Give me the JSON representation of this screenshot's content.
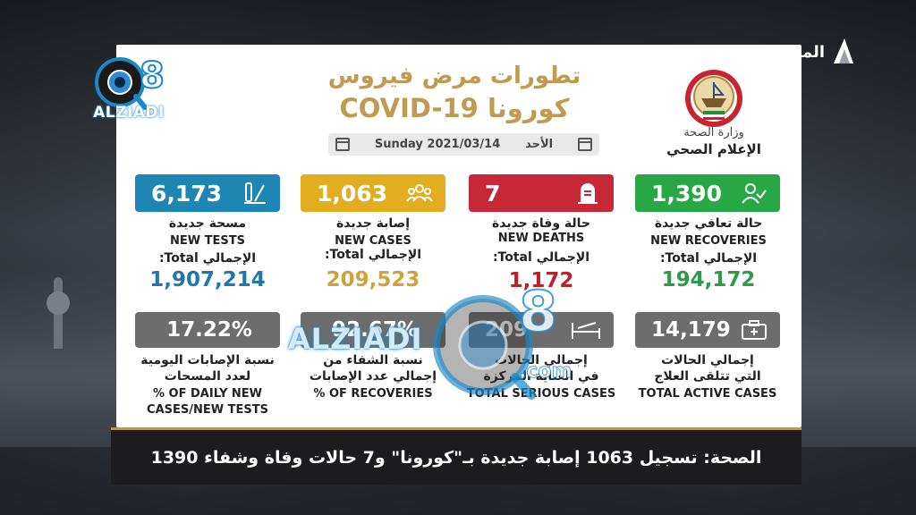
{
  "channel": {
    "logo_text": "المجلس"
  },
  "watermark": {
    "brand": "ALZIADI",
    "numeral": "8",
    "domain": ".com"
  },
  "header": {
    "title_ar": "تطورات مرض فيروس",
    "title_en": "كورونا COVID-19",
    "date": "Sunday 2021/03/14",
    "day_ar": "الأحد"
  },
  "ministry": {
    "line1": "وزارة الصحة",
    "line2": "الإعلام الصحي"
  },
  "cards": {
    "recoveries": {
      "value": "1,390",
      "label_ar": "حالة تعافي جديدة",
      "label_en": "NEW RECOVERIES",
      "total_label": "الإجمالي Total:",
      "total": "194,172",
      "color": "#27a844",
      "total_color": "#2a9d46"
    },
    "deaths": {
      "value": "7",
      "label_ar": "حالة وفاة جديدة",
      "label_en": "NEW DEATHS",
      "total_label": "الإجمالي Total:",
      "total": "1,172",
      "color": "#c62838",
      "total_color": "#b6232f"
    },
    "cases": {
      "value": "1,063",
      "label_ar": "إصابة جديدة",
      "label_en": "NEW CASES",
      "total_label": "الإجمالي Total:",
      "total": "209,523",
      "color": "#e2ad1f",
      "total_color": "#d1a23b"
    },
    "tests": {
      "value": "6,173",
      "label_ar": "مسحة جديدة",
      "label_en": "NEW TESTS",
      "total_label": "الإجمالي Total:",
      "total": "1,907,214",
      "color": "#1d86b3",
      "total_color": "#1f78aa"
    }
  },
  "gray_cards": {
    "active": {
      "value": "14,179",
      "label_ar_1": "إجمالي الحالات",
      "label_ar_2": "التي تتلقى العلاج",
      "label_en": "TOTAL ACTIVE CASES"
    },
    "serious": {
      "value": "209",
      "label_ar_1": "إجمالي الحالات",
      "label_ar_2": "في العناية المركزة",
      "label_en": "TOTAL SERIOUS CASES"
    },
    "recovery_pct": {
      "value": "92.67%",
      "label_ar_1": "نسبة الشفاء من",
      "label_ar_2": "إجمالي عدد الإصابات",
      "label_en": "% OF RECOVERIES"
    },
    "daily_pct": {
      "value": "17.22%",
      "label_ar_1": "نسبة الإصابات اليومية",
      "label_ar_2": "لعدد المسحات",
      "label_en_1": "% OF DAILY NEW",
      "label_en_2": "CASES/NEW TESTS"
    }
  },
  "ticker": {
    "text": "الصحة: تسجيل 1063 إصابة جديدة بـ\"كورونا\" و7 حالات وفاة وشفاء 1390"
  }
}
